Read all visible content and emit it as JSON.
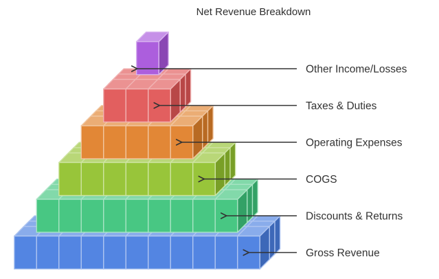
{
  "title": "Net Revenue Breakdown",
  "layers": [
    {
      "label": "Other Income/Losses",
      "color": "#a855db"
    },
    {
      "label": "Taxes & Duties",
      "color": "#e05757"
    },
    {
      "label": "Operating Expenses",
      "color": "#e0812b"
    },
    {
      "label": "COGS",
      "color": "#93c230"
    },
    {
      "label": "Discounts & Returns",
      "color": "#3ec47c"
    },
    {
      "label": "Gross Revenue",
      "color": "#4a7fe0"
    }
  ]
}
